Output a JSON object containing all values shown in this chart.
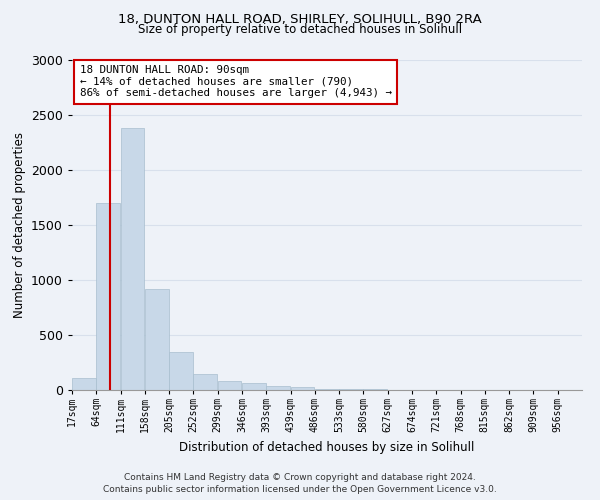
{
  "title1": "18, DUNTON HALL ROAD, SHIRLEY, SOLIHULL, B90 2RA",
  "title2": "Size of property relative to detached houses in Solihull",
  "xlabel": "Distribution of detached houses by size in Solihull",
  "ylabel": "Number of detached properties",
  "footer1": "Contains HM Land Registry data © Crown copyright and database right 2024.",
  "footer2": "Contains public sector information licensed under the Open Government Licence v3.0.",
  "bin_labels": [
    "17sqm",
    "64sqm",
    "111sqm",
    "158sqm",
    "205sqm",
    "252sqm",
    "299sqm",
    "346sqm",
    "393sqm",
    "439sqm",
    "486sqm",
    "533sqm",
    "580sqm",
    "627sqm",
    "674sqm",
    "721sqm",
    "768sqm",
    "815sqm",
    "862sqm",
    "909sqm",
    "956sqm"
  ],
  "bar_values": [
    110,
    1700,
    2380,
    920,
    350,
    150,
    80,
    60,
    40,
    30,
    10,
    5,
    5,
    2,
    2,
    1,
    1,
    1,
    0,
    0
  ],
  "bar_color": "#c8d8e8",
  "bar_edge_color": "#a8bece",
  "grid_color": "#d8e0ec",
  "property_line_x": 90,
  "annotation_title": "18 DUNTON HALL ROAD: 90sqm",
  "annotation_line1": "← 14% of detached houses are smaller (790)",
  "annotation_line2": "86% of semi-detached houses are larger (4,943) →",
  "annotation_box_color": "#ffffff",
  "annotation_border_color": "#cc0000",
  "vline_color": "#cc0000",
  "ylim": [
    0,
    3000
  ],
  "bin_width": 47,
  "background_color": "#eef2f8"
}
